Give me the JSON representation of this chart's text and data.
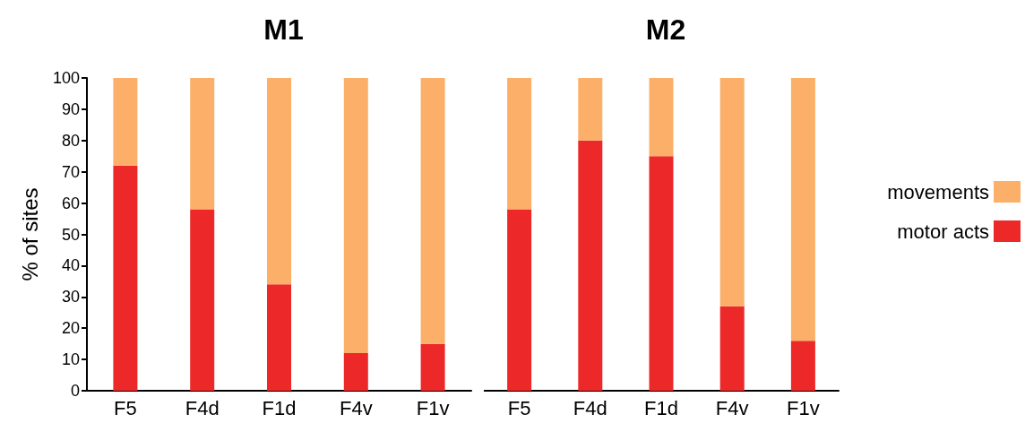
{
  "chart_data": [
    {
      "type": "bar",
      "title": "M1",
      "ylabel": "% of sites",
      "categories": [
        "F5",
        "F4d",
        "F1d",
        "F4v",
        "F1v"
      ],
      "stacked": true,
      "ylim": [
        0,
        100
      ],
      "yticks": [
        0,
        10,
        20,
        30,
        40,
        50,
        60,
        70,
        80,
        90,
        100
      ],
      "grid": false,
      "legend": false,
      "series": [
        {
          "color": "#ec2828",
          "values": [
            72,
            58,
            34,
            12,
            15
          ]
        },
        {
          "color": "#fbaf68",
          "values": [
            28,
            42,
            66,
            88,
            85
          ]
        }
      ]
    },
    {
      "type": "bar",
      "title": "M2",
      "categories": [
        "F5",
        "F4d",
        "F1d",
        "F4v",
        "F1v"
      ],
      "stacked": true,
      "ylim": [
        0,
        100
      ],
      "yticks": [
        0,
        10,
        20,
        30,
        40,
        50,
        60,
        70,
        80,
        90,
        100
      ],
      "grid": false,
      "legend": "right",
      "tick_labels": "x",
      "series": [
        {
          "name": "motor acts",
          "color": "#ec2828",
          "values": [
            58,
            80,
            75,
            27,
            16
          ]
        },
        {
          "name": "movements",
          "color": "#fbaf68",
          "values": [
            42,
            20,
            25,
            73,
            84
          ]
        }
      ]
    }
  ]
}
